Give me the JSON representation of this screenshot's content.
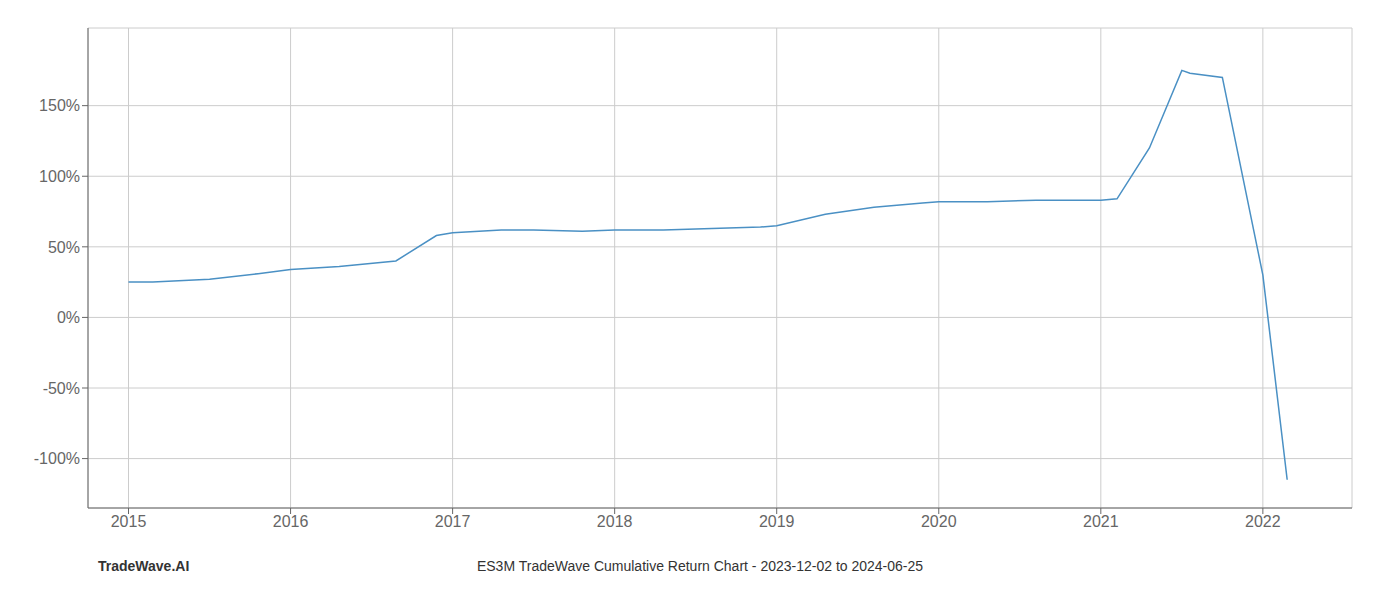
{
  "chart_data": {
    "type": "line",
    "title": "ES3M TradeWave Cumulative Return Chart - 2023-12-02 to 2024-06-25",
    "annotations": [
      "TradeWave.AI"
    ],
    "x": [
      2015.0,
      2015.15,
      2015.5,
      2015.8,
      2016.0,
      2016.3,
      2016.65,
      2016.9,
      2017.0,
      2017.3,
      2017.5,
      2017.8,
      2018.0,
      2018.3,
      2018.6,
      2018.9,
      2019.0,
      2019.3,
      2019.6,
      2019.9,
      2020.0,
      2020.3,
      2020.6,
      2020.9,
      2021.0,
      2021.1,
      2021.3,
      2021.5,
      2021.55,
      2021.75,
      2022.0,
      2022.15
    ],
    "values": [
      25,
      25,
      27,
      31,
      34,
      36,
      40,
      58,
      60,
      62,
      62,
      61,
      62,
      62,
      63,
      64,
      65,
      73,
      78,
      81,
      82,
      82,
      83,
      83,
      83,
      84,
      120,
      175,
      173,
      170,
      30,
      -115
    ],
    "color": "#4a90c4",
    "xlim": [
      2014.75,
      2022.55
    ],
    "ylim": [
      -135,
      205
    ],
    "xticks": [
      2015,
      2016,
      2017,
      2018,
      2019,
      2020,
      2021,
      2022
    ],
    "yticks": [
      {
        "value": -100,
        "label": "-100%"
      },
      {
        "value": -50,
        "label": "-50%"
      },
      {
        "value": 0,
        "label": "0%"
      },
      {
        "value": 50,
        "label": "50%"
      },
      {
        "value": 100,
        "label": "100%"
      },
      {
        "value": 150,
        "label": "150%"
      }
    ],
    "grid": true
  }
}
